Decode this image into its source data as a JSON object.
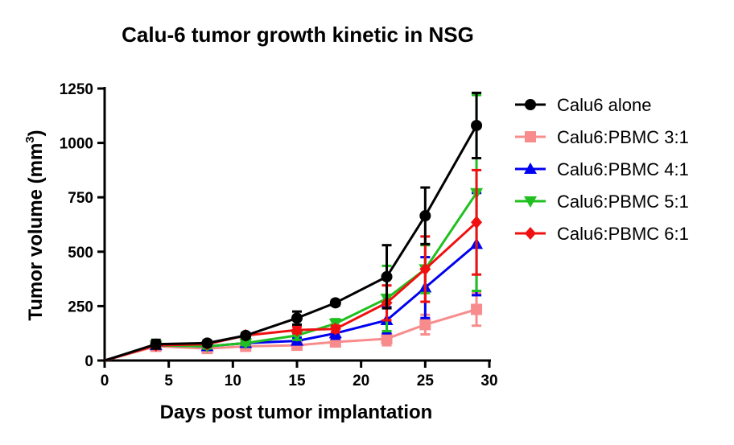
{
  "chart_data": {
    "type": "line",
    "title": "Calu-6 tumor growth kinetic in NSG",
    "xlabel": "Days post tumor implantation",
    "ylabel": "Tumor volume (mm",
    "ylabel_sup": "3",
    "ylabel_close": ")",
    "xlim": [
      0,
      30
    ],
    "ylim": [
      0,
      1250
    ],
    "xticks": [
      0,
      5,
      10,
      15,
      20,
      25,
      30
    ],
    "yticks": [
      0,
      250,
      500,
      750,
      1000,
      1250
    ],
    "x": [
      0,
      4,
      8,
      11,
      15,
      18,
      22,
      25,
      29
    ],
    "legend_position": "right",
    "series": [
      {
        "name": "Calu6 alone",
        "color": "#000000",
        "marker": "circle",
        "values": [
          0,
          75,
          80,
          115,
          195,
          265,
          385,
          665,
          1080
        ],
        "errors": [
          0,
          20,
          12,
          12,
          30,
          12,
          145,
          130,
          150
        ]
      },
      {
        "name": "Calu6:PBMC 3:1",
        "color": "#f88c8c",
        "marker": "square",
        "values": [
          0,
          65,
          55,
          65,
          70,
          85,
          100,
          165,
          235
        ],
        "errors": [
          0,
          10,
          8,
          10,
          15,
          20,
          30,
          45,
          75
        ]
      },
      {
        "name": "Calu6:PBMC 4:1",
        "color": "#0000f0",
        "marker": "triangle-up",
        "values": [
          0,
          70,
          65,
          80,
          90,
          125,
          185,
          335,
          535
        ],
        "errors": [
          0,
          15,
          10,
          10,
          15,
          25,
          60,
          140,
          235
        ]
      },
      {
        "name": "Calu6:PBMC 5:1",
        "color": "#20c020",
        "marker": "triangle-down",
        "values": [
          0,
          70,
          65,
          80,
          115,
          170,
          285,
          420,
          770
        ],
        "errors": [
          0,
          15,
          10,
          10,
          20,
          20,
          150,
          110,
          450
        ]
      },
      {
        "name": "Calu6:PBMC 6:1",
        "color": "#f01010",
        "marker": "diamond",
        "values": [
          0,
          70,
          75,
          115,
          140,
          145,
          265,
          420,
          635
        ],
        "errors": [
          0,
          15,
          10,
          10,
          15,
          15,
          80,
          150,
          240
        ]
      }
    ]
  }
}
